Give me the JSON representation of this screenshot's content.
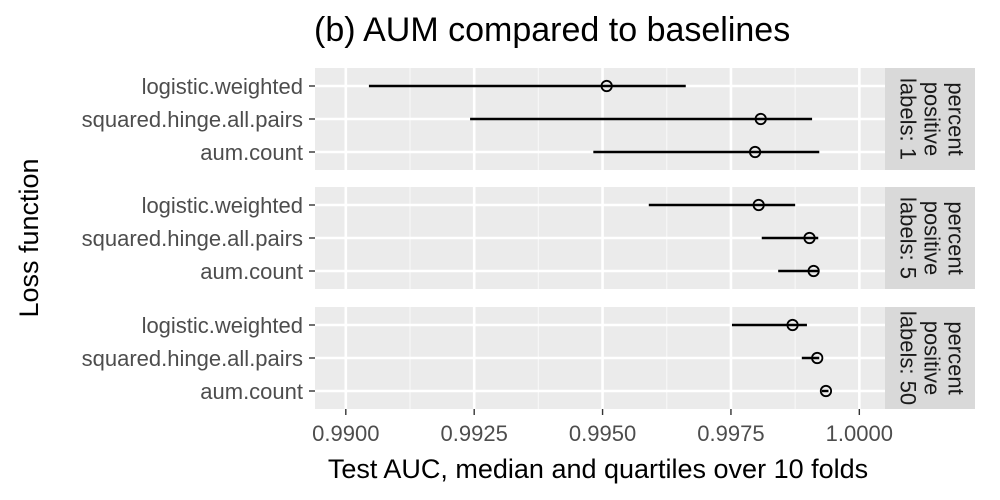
{
  "chart_data": {
    "type": "interval-dot",
    "title": "(b) AUM compared to baselines",
    "xlabel": "Test AUC, median and quartiles over 10 folds",
    "ylabel": "Loss function",
    "xlim": [
      0.9894,
      1.0005
    ],
    "x_ticks": [
      {
        "value": 0.99,
        "label": "0.9900"
      },
      {
        "value": 0.9925,
        "label": "0.9925"
      },
      {
        "value": 0.995,
        "label": "0.9950"
      },
      {
        "value": 0.9975,
        "label": "0.9975"
      },
      {
        "value": 1.0,
        "label": "1.0000"
      }
    ],
    "categories": [
      "logistic.weighted",
      "squared.hinge.all.pairs",
      "aum.count"
    ],
    "grid": true,
    "panels": [
      {
        "strip_lines": [
          "percent",
          "positive",
          "labels: 1"
        ],
        "rows": [
          {
            "label": "logistic.weighted",
            "q25": 0.99045,
            "median": 0.99508,
            "q75": 0.99662
          },
          {
            "label": "squared.hinge.all.pairs",
            "q25": 0.99242,
            "median": 0.99808,
            "q75": 0.99908
          },
          {
            "label": "aum.count",
            "q25": 0.99482,
            "median": 0.99797,
            "q75": 0.99922
          }
        ]
      },
      {
        "strip_lines": [
          "percent",
          "positive",
          "labels: 5"
        ],
        "rows": [
          {
            "label": "logistic.weighted",
            "q25": 0.9959,
            "median": 0.99804,
            "q75": 0.99875
          },
          {
            "label": "squared.hinge.all.pairs",
            "q25": 0.9981,
            "median": 0.99903,
            "q75": 0.9992
          },
          {
            "label": "aum.count",
            "q25": 0.99842,
            "median": 0.99911,
            "q75": 0.9992
          }
        ]
      },
      {
        "strip_lines": [
          "percent",
          "positive",
          "labels: 50"
        ],
        "rows": [
          {
            "label": "logistic.weighted",
            "q25": 0.99752,
            "median": 0.9987,
            "q75": 0.99898
          },
          {
            "label": "squared.hinge.all.pairs",
            "q25": 0.99888,
            "median": 0.99918,
            "q75": 0.99922
          },
          {
            "label": "aum.count",
            "q25": 0.99927,
            "median": 0.99935,
            "q75": 0.9994
          }
        ]
      }
    ],
    "colors": {
      "panel_background": "#ebebeb",
      "strip_background": "#d9d9d9",
      "grid_major": "#ffffff",
      "marks": "#000000",
      "tick_label": "#4d4d4d"
    }
  }
}
